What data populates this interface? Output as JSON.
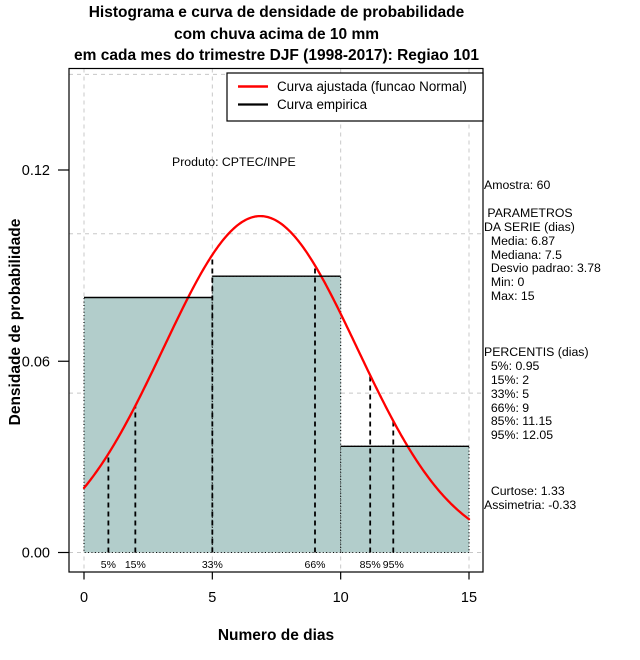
{
  "title": {
    "line1": "Histograma e curva de densidade de probabilidade",
    "line2": "com chuva acima de 10 mm",
    "line3": "em cada mes do trimestre DJF (1998-2017): Regiao 101"
  },
  "legend": {
    "items": [
      {
        "label": "Curva ajustada (funcao Normal)",
        "color": "#ff0000"
      },
      {
        "label": "Curva empirica",
        "color": "#000000"
      }
    ]
  },
  "annotation": "Produto: CPTEC/INPE",
  "stats_panel": {
    "lines": [
      "Amostra: 60",
      "",
      " PARAMETROS",
      "DA SERIE (dias)",
      "  Media: 6.87",
      "  Mediana: 7.5",
      "  Desvio padrao: 3.78",
      "  Min: 0",
      "  Max: 15",
      "",
      "",
      "",
      "PERCENTIS (dias)",
      "  5%: 0.95",
      "  15%: 2",
      "  33%: 5",
      "  66%: 9",
      "  85%: 11.15",
      "  95%: 12.05",
      "",
      "",
      "",
      "  Curtose: 1.33",
      "Assimetria: -0.33"
    ]
  },
  "chart_data": {
    "type": "histogram+density-line",
    "title": "Histograma e curva de densidade de probabilidade com chuva acima de 10 mm em cada mes do trimestre DJF (1998-2017): Regiao 101",
    "xlabel": "Numero de dias",
    "ylabel": "Densidade de probabilidade",
    "xlim": [
      -0.6,
      15.6
    ],
    "ylim": [
      -0.006,
      0.152
    ],
    "xticks": [
      0,
      5,
      10,
      15
    ],
    "yticks": [
      0,
      0.06,
      0.12
    ],
    "ytick_labels": [
      "0.00",
      "0.06",
      "0.12"
    ],
    "grid": {
      "x": [
        0,
        5,
        10,
        15
      ],
      "y": [
        0,
        0.05,
        0.1,
        0.15
      ]
    },
    "histogram": {
      "breaks": [
        0,
        5,
        10,
        15
      ],
      "densities": [
        0.08,
        0.0867,
        0.0333
      ]
    },
    "normal_fit": {
      "mean": 6.87,
      "sd": 3.78,
      "curve_range": [
        0,
        15
      ]
    },
    "percentiles": [
      {
        "label": "5%",
        "x": 0.95
      },
      {
        "label": "15%",
        "x": 2
      },
      {
        "label": "33%",
        "x": 5
      },
      {
        "label": "66%",
        "x": 9
      },
      {
        "label": "85%",
        "x": 11.15
      },
      {
        "label": "95%",
        "x": 12.05
      }
    ],
    "stats": {
      "amostra": 60,
      "media": 6.87,
      "mediana": 7.5,
      "desvio_padrao": 3.78,
      "min": 0,
      "max": 15,
      "curtose": 1.33,
      "assimetria": -0.33
    },
    "legend_position": "top",
    "colors": {
      "bar_fill": "#b2cdcb",
      "fitted_curve": "#ff0000",
      "empirical_curve": "#000000",
      "grid": "#c8c8c8"
    }
  }
}
